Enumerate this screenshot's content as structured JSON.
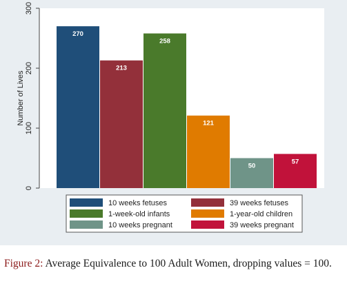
{
  "chart_data": {
    "type": "bar",
    "ylabel": "Number of Lives",
    "ylim": [
      0,
      300
    ],
    "yticks": [
      0,
      100,
      200,
      300
    ],
    "grid": false,
    "legend_position": "bottom",
    "categories": [
      "10 weeks fetuses",
      "39 weeks fetuses",
      "1-week-old infants",
      "1-year-old children",
      "10 weeks pregnant",
      "39 weeks pregnant"
    ],
    "values": [
      270,
      213,
      258,
      121,
      50,
      57
    ],
    "colors": [
      "#1f4e79",
      "#93303a",
      "#4a7a2b",
      "#e07b00",
      "#6f9488",
      "#c1123a"
    ]
  },
  "caption": {
    "label": "Figure 2:",
    "text": "Average Equivalence to 100 Adult Women, dropping values = 100."
  }
}
